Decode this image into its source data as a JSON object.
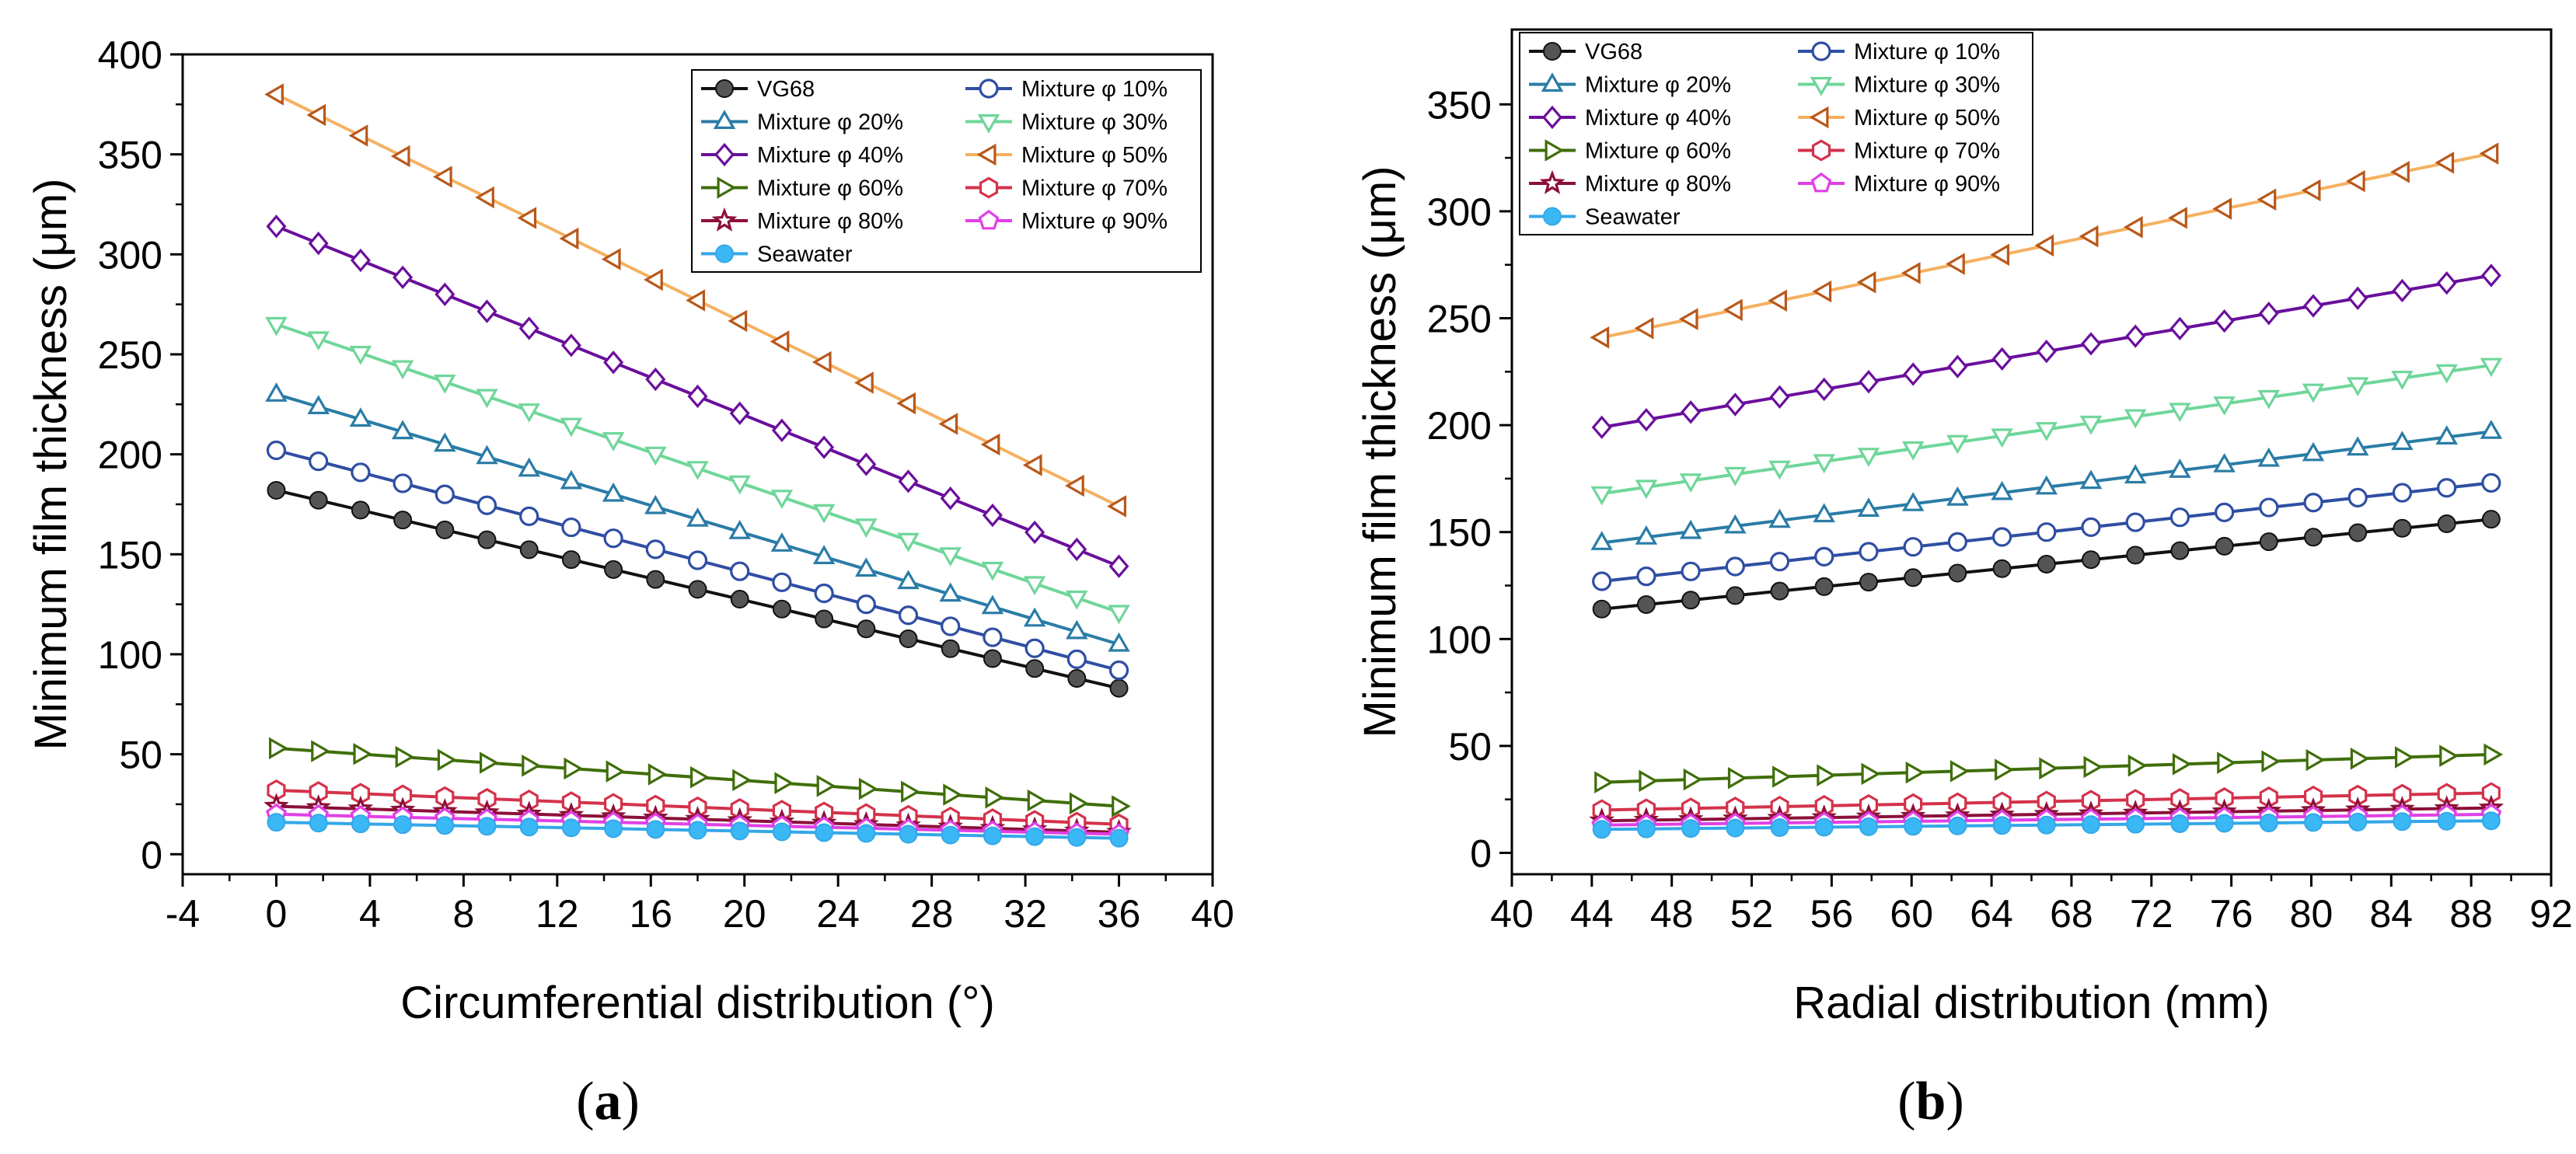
{
  "figure": {
    "panel_labels": [
      {
        "open": "(",
        "letter": "a",
        "close": ")"
      },
      {
        "open": "(",
        "letter": "b",
        "close": ")"
      }
    ]
  },
  "chart_data": [
    {
      "type": "line",
      "title": "",
      "xlabel": "Circumferential distribution (°)",
      "ylabel": "Minimum film thickness (μm)",
      "xlim": [
        -4,
        40
      ],
      "ylim": [
        -10,
        400
      ],
      "xticks": [
        -4,
        0,
        4,
        8,
        12,
        16,
        20,
        24,
        28,
        32,
        36,
        40
      ],
      "yticks": [
        0,
        50,
        100,
        150,
        200,
        250,
        300,
        350,
        400
      ],
      "legend_position": "top-right",
      "legend_columns": 2,
      "x_start": 0,
      "x_end": 36,
      "num_points": 21,
      "series": [
        {
          "name": "VG68",
          "marker": "filled-circle",
          "color": "#111111",
          "marker_color": "#555555",
          "start": 182,
          "end": 83
        },
        {
          "name": "Mixture φ 10%",
          "marker": "circle",
          "color": "#2f4ea3",
          "start": 202,
          "end": 92
        },
        {
          "name": "Mixture φ 20%",
          "marker": "triangle-up",
          "color": "#2a7ca6",
          "start": 230,
          "end": 105
        },
        {
          "name": "Mixture φ 30%",
          "marker": "triangle-down",
          "color": "#6fd69a",
          "start": 265,
          "end": 121
        },
        {
          "name": "Mixture φ 40%",
          "marker": "diamond",
          "color": "#6a0f9c",
          "start": 314,
          "end": 144
        },
        {
          "name": "Mixture φ 50%",
          "marker": "triangle-left",
          "color": "#b8581a",
          "line_color": "#f5b060",
          "start": 380,
          "end": 174
        },
        {
          "name": "Mixture φ 60%",
          "marker": "triangle-right",
          "color": "#3f6e0a",
          "start": 53,
          "end": 24
        },
        {
          "name": "Mixture φ 70%",
          "marker": "hexagon",
          "color": "#d4324b",
          "start": 32,
          "end": 15
        },
        {
          "name": "Mixture φ 80%",
          "marker": "star",
          "color": "#8c1039",
          "start": 24,
          "end": 11
        },
        {
          "name": "Mixture φ 90%",
          "marker": "pentagon",
          "color": "#e040e6",
          "start": 20,
          "end": 10
        },
        {
          "name": "Seawater",
          "marker": "filled-circle",
          "color": "#34a7e8",
          "marker_color": "#3ab8f5",
          "start": 16,
          "end": 8
        }
      ]
    },
    {
      "type": "line",
      "title": "",
      "xlabel": "Radial distribution (mm)",
      "ylabel": "Minimum film thickness (μm)",
      "xlim": [
        40,
        92
      ],
      "ylim": [
        -10,
        385
      ],
      "xticks": [
        40,
        44,
        48,
        52,
        56,
        60,
        64,
        68,
        72,
        76,
        80,
        84,
        88,
        92
      ],
      "yticks": [
        0,
        50,
        100,
        150,
        200,
        250,
        300,
        350
      ],
      "legend_position": "top-left",
      "legend_columns": 2,
      "x_start": 44.5,
      "x_end": 89,
      "num_points": 21,
      "series": [
        {
          "name": "VG68",
          "marker": "filled-circle",
          "color": "#111111",
          "marker_color": "#555555",
          "start": 114,
          "end": 156
        },
        {
          "name": "Mixture φ 10%",
          "marker": "circle",
          "color": "#2f4ea3",
          "start": 127,
          "end": 173
        },
        {
          "name": "Mixture φ 20%",
          "marker": "triangle-up",
          "color": "#2a7ca6",
          "start": 145,
          "end": 197
        },
        {
          "name": "Mixture φ 30%",
          "marker": "triangle-down",
          "color": "#6fd69a",
          "start": 168,
          "end": 228
        },
        {
          "name": "Mixture φ 40%",
          "marker": "diamond",
          "color": "#6a0f9c",
          "start": 199,
          "end": 270
        },
        {
          "name": "Mixture φ 50%",
          "marker": "triangle-left",
          "color": "#b8581a",
          "line_color": "#f5b060",
          "start": 241,
          "end": 327
        },
        {
          "name": "Mixture φ 60%",
          "marker": "triangle-right",
          "color": "#3f6e0a",
          "start": 33,
          "end": 46
        },
        {
          "name": "Mixture φ 70%",
          "marker": "hexagon",
          "color": "#d4324b",
          "start": 20,
          "end": 28
        },
        {
          "name": "Mixture φ 80%",
          "marker": "star",
          "color": "#8c1039",
          "start": 15,
          "end": 21
        },
        {
          "name": "Mixture φ 90%",
          "marker": "pentagon",
          "color": "#e040e6",
          "start": 13,
          "end": 18
        },
        {
          "name": "Seawater",
          "marker": "filled-circle",
          "color": "#34a7e8",
          "marker_color": "#3ab8f5",
          "start": 11,
          "end": 15
        }
      ]
    }
  ]
}
